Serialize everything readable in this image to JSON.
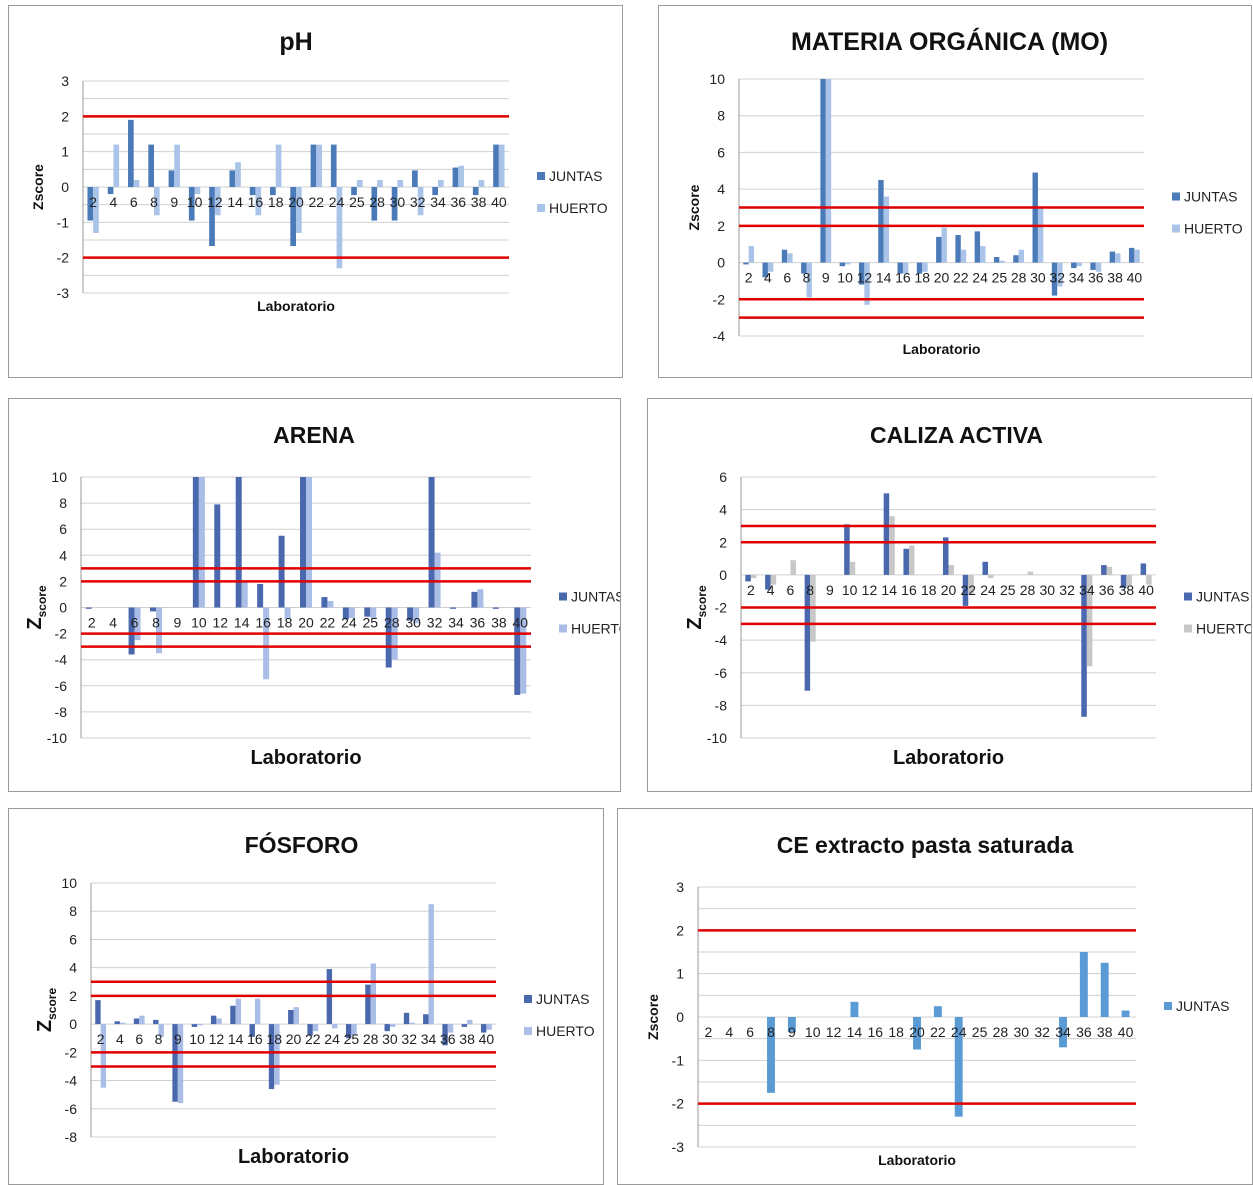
{
  "chart_data": [
    {
      "type": "bar",
      "title": "pH",
      "ylabel": "Zscore",
      "xlabel": "Laboratorio",
      "ylim": [
        -3,
        3
      ],
      "yticks": [
        -3,
        -2,
        -1,
        0,
        1,
        2,
        3
      ],
      "categories": [
        "2",
        "4",
        "6",
        "8",
        "9",
        "10",
        "12",
        "14",
        "16",
        "18",
        "20",
        "22",
        "24",
        "25",
        "28",
        "30",
        "32",
        "34",
        "36",
        "38",
        "40"
      ],
      "series": [
        {
          "name": "JUNTAS",
          "color": "#4a7ab8",
          "values": [
            -0.95,
            -0.2,
            1.9,
            1.2,
            0.47,
            -0.95,
            -1.67,
            0.47,
            -0.23,
            -0.23,
            -1.67,
            1.2,
            1.2,
            -0.23,
            -0.95,
            -0.95,
            0.47,
            -0.23,
            0.55,
            -0.23,
            1.2
          ]
        },
        {
          "name": "HUERTO",
          "color": "#a9c4e8",
          "values": [
            -1.3,
            1.2,
            0.2,
            -0.8,
            1.2,
            -0.2,
            -0.8,
            0.7,
            -0.8,
            1.2,
            -1.3,
            1.2,
            -2.3,
            0.2,
            0.2,
            0.2,
            -0.8,
            0.2,
            0.6,
            0.2,
            1.2
          ]
        }
      ],
      "reference_lines": [
        2,
        -2
      ],
      "reference_color": "#e00000",
      "legend": "right"
    },
    {
      "type": "bar",
      "title": "MATERIA ORGÁNICA (MO)",
      "ylabel": "Zscore",
      "xlabel": "Laboratorio",
      "ylim": [
        -4,
        10
      ],
      "yticks": [
        -4,
        -2,
        0,
        2,
        4,
        6,
        8,
        10
      ],
      "categories": [
        "2",
        "4",
        "6",
        "8",
        "9",
        "10",
        "12",
        "14",
        "16",
        "18",
        "20",
        "22",
        "24",
        "25",
        "28",
        "30",
        "32",
        "34",
        "36",
        "38",
        "40"
      ],
      "series": [
        {
          "name": "JUNTAS",
          "color": "#4a7ab8",
          "values": [
            -0.1,
            -0.8,
            0.7,
            -0.6,
            10,
            -0.2,
            -1.2,
            4.5,
            -0.6,
            -0.6,
            1.4,
            1.5,
            1.7,
            0.3,
            0.4,
            4.9,
            -1.8,
            -0.3,
            -0.4,
            0.6,
            0.8
          ]
        },
        {
          "name": "HUERTO",
          "color": "#a9c4e8",
          "values": [
            0.9,
            -0.5,
            0.5,
            -1.9,
            10,
            -0.1,
            -2.3,
            3.6,
            -0.6,
            -0.5,
            1.9,
            0.7,
            0.9,
            0.1,
            0.7,
            3.0,
            -1.3,
            -0.2,
            -0.5,
            0.5,
            0.7
          ]
        }
      ],
      "reference_lines": [
        3,
        2,
        -2,
        -3
      ],
      "reference_color": "#e00000",
      "legend": "right"
    },
    {
      "type": "bar",
      "title": "ARENA",
      "ylabel": "Z",
      "ylabel_sub": "score",
      "xlabel": "Laboratorio",
      "ylim": [
        -10,
        10
      ],
      "yticks": [
        -10,
        -8,
        -6,
        -4,
        -2,
        0,
        2,
        4,
        6,
        8,
        10
      ],
      "categories": [
        "2",
        "4",
        "6",
        "8",
        "9",
        "10",
        "12",
        "14",
        "16",
        "18",
        "20",
        "22",
        "24",
        "25",
        "28",
        "30",
        "32",
        "34",
        "36",
        "38",
        "40"
      ],
      "series": [
        {
          "name": "JUNTAS",
          "color": "#4a68ad",
          "values": [
            -0.1,
            0,
            -3.6,
            -0.3,
            0,
            10,
            7.9,
            10,
            1.8,
            5.5,
            10,
            0.8,
            -0.9,
            -0.7,
            -4.6,
            -1.0,
            10,
            -0.1,
            1.2,
            -0.1,
            -6.7
          ]
        },
        {
          "name": "HUERTO",
          "color": "#a9bde6",
          "values": [
            0,
            0,
            -2.5,
            -3.5,
            0,
            10,
            0,
            2.0,
            -5.5,
            -0.9,
            10,
            0.5,
            -0.8,
            -0.8,
            -4.0,
            -1.2,
            4.2,
            0,
            1.4,
            0,
            -6.6
          ]
        }
      ],
      "reference_lines": [
        3,
        2,
        -2,
        -3
      ],
      "reference_color": "#e00000",
      "legend": "right"
    },
    {
      "type": "bar",
      "title": "CALIZA ACTIVA",
      "ylabel": "Z",
      "ylabel_sub": "score",
      "xlabel": "Laboratorio",
      "ylim": [
        -10,
        6
      ],
      "yticks": [
        -10,
        -8,
        -6,
        -4,
        -2,
        0,
        2,
        4,
        6
      ],
      "categories": [
        "2",
        "4",
        "6",
        "8",
        "9",
        "10",
        "12",
        "14",
        "16",
        "18",
        "20",
        "22",
        "24",
        "25",
        "28",
        "30",
        "32",
        "34",
        "36",
        "38",
        "40"
      ],
      "series": [
        {
          "name": "JUNTAS",
          "color": "#4a68ad",
          "values": [
            -0.4,
            -0.9,
            0,
            -7.1,
            0,
            3.1,
            0,
            5.0,
            1.6,
            0,
            2.3,
            -1.9,
            0.8,
            0,
            0,
            0,
            0,
            -8.7,
            0.6,
            -0.8,
            0.7
          ]
        },
        {
          "name": "HUERTO",
          "color": "#c8c8c8",
          "values": [
            -0.2,
            -0.6,
            0.9,
            -4.1,
            0,
            0.8,
            0,
            3.6,
            1.8,
            0,
            0.6,
            -1.2,
            -0.2,
            0,
            0.2,
            0,
            0,
            -5.6,
            0.5,
            -0.7,
            -0.6
          ]
        }
      ],
      "reference_lines": [
        3,
        2,
        -2,
        -3
      ],
      "reference_color": "#e00000",
      "legend": "right"
    },
    {
      "type": "bar",
      "title": "FÓSFORO",
      "ylabel": "Z",
      "ylabel_sub": "score",
      "xlabel": "Laboratorio",
      "ylim": [
        -8,
        10
      ],
      "yticks": [
        -8,
        -6,
        -4,
        -2,
        0,
        2,
        4,
        6,
        8,
        10
      ],
      "categories": [
        "2",
        "4",
        "6",
        "8",
        "9",
        "10",
        "12",
        "14",
        "16",
        "18",
        "20",
        "22",
        "24",
        "25",
        "28",
        "30",
        "32",
        "34",
        "36",
        "38",
        "40"
      ],
      "series": [
        {
          "name": "JUNTAS",
          "color": "#4a68ad",
          "values": [
            1.7,
            0.2,
            0.4,
            0.3,
            -5.5,
            -0.2,
            0.6,
            1.3,
            -0.9,
            -4.6,
            1.0,
            -0.8,
            3.9,
            -1.0,
            2.8,
            -0.5,
            0.8,
            0.7,
            -1.5,
            -0.2,
            -0.6
          ]
        },
        {
          "name": "HUERTO",
          "color": "#a9bde6",
          "values": [
            -4.5,
            0.1,
            0.6,
            -0.9,
            -5.6,
            -0.1,
            0.4,
            1.8,
            1.8,
            -4.3,
            1.2,
            -0.5,
            -0.3,
            -0.8,
            4.3,
            -0.2,
            0.1,
            8.5,
            -0.6,
            0.3,
            -0.4
          ]
        }
      ],
      "reference_lines": [
        3,
        2,
        -2,
        -3
      ],
      "reference_color": "#e00000",
      "legend": "right"
    },
    {
      "type": "bar",
      "title": "CE extracto pasta saturada",
      "ylabel": "Zscore",
      "xlabel": "Laboratorio",
      "ylim": [
        -3,
        3
      ],
      "yticks": [
        -3,
        -2,
        -1,
        0,
        1,
        2,
        3
      ],
      "categories": [
        "2",
        "4",
        "6",
        "8",
        "9",
        "10",
        "12",
        "14",
        "16",
        "18",
        "20",
        "22",
        "24",
        "25",
        "28",
        "30",
        "32",
        "34",
        "36",
        "38",
        "40"
      ],
      "series": [
        {
          "name": "JUNTAS",
          "color": "#5b9bd5",
          "values": [
            0,
            0,
            0,
            -1.75,
            -0.35,
            0,
            0,
            0.35,
            0,
            0,
            -0.75,
            0.25,
            -2.3,
            0,
            0,
            0,
            0,
            -0.7,
            1.5,
            1.25,
            0.15
          ]
        }
      ],
      "reference_lines": [
        2,
        -2
      ],
      "reference_color": "#e00000",
      "legend": "right"
    }
  ]
}
